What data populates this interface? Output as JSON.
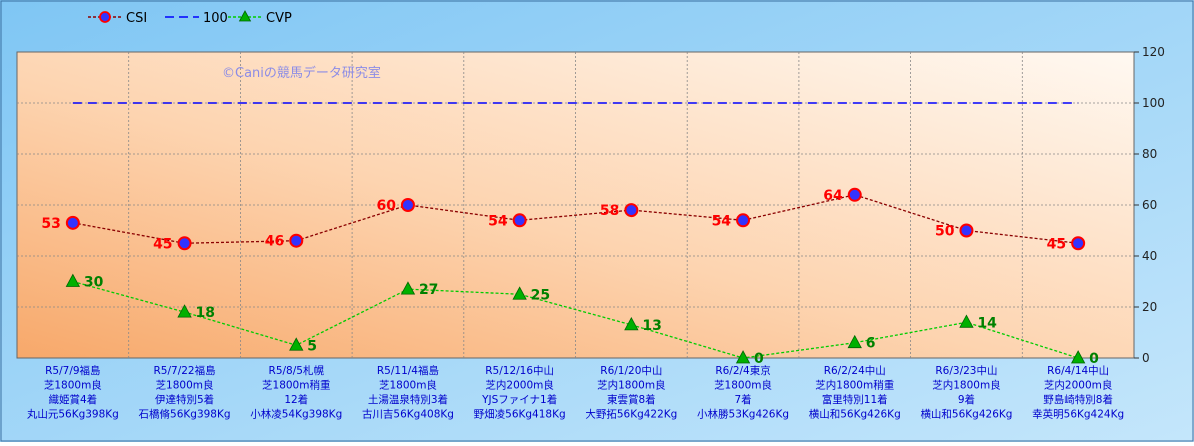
{
  "chart_data": {
    "type": "line",
    "watermark": "©Caniの競馬データ研究室",
    "categories": [
      [
        "R5/7/9福島",
        "芝1800m良",
        "織姫賞4着",
        "丸山元56Kg398Kg"
      ],
      [
        "R5/7/22福島",
        "芝1800m良",
        "伊達特別5着",
        "石橋脩56Kg398Kg"
      ],
      [
        "R5/8/5札幌",
        "芝1800m稍重",
        "12着",
        "小林凌54Kg398Kg"
      ],
      [
        "R5/11/4福島",
        "芝1800m良",
        "土湯温泉特別3着",
        "古川吉56Kg408Kg"
      ],
      [
        "R5/12/16中山",
        "芝内2000m良",
        "YJSファイナ1着",
        "野畑凌56Kg418Kg"
      ],
      [
        "R6/1/20中山",
        "芝内1800m良",
        "東雲賞8着",
        "大野拓56Kg422Kg"
      ],
      [
        "R6/2/4東京",
        "芝1800m良",
        "7着",
        "小林勝53Kg426Kg"
      ],
      [
        "R6/2/24中山",
        "芝内1800m稍重",
        "富里特別11着",
        "横山和56Kg426Kg"
      ],
      [
        "R6/3/23中山",
        "芝内1800m良",
        "9着",
        "横山和56Kg426Kg"
      ],
      [
        "R6/4/14中山",
        "芝内2000m良",
        "野島崎特別8着",
        "幸英明56Kg424Kg"
      ]
    ],
    "series": [
      {
        "name": "CSI",
        "values": [
          53,
          45,
          46,
          60,
          54,
          58,
          54,
          64,
          50,
          45
        ],
        "color": "#8b0000",
        "marker": "circle",
        "label_color": "#ff0000"
      },
      {
        "name": "100",
        "values": [
          100,
          100,
          100,
          100,
          100,
          100,
          100,
          100,
          100,
          100
        ],
        "color": "#0000ff",
        "marker": "none"
      },
      {
        "name": "CVP",
        "values": [
          30,
          18,
          5,
          27,
          25,
          13,
          0,
          6,
          14,
          0
        ],
        "color": "#00cc00",
        "marker": "triangle",
        "label_color": "#008000"
      }
    ],
    "y_axis": {
      "min": 0,
      "max": 120,
      "step": 20,
      "ticks": [
        "0",
        "20",
        "40",
        "60",
        "80",
        "100",
        "120"
      ],
      "position": "right"
    },
    "grid": true,
    "legend_position": "top-left",
    "colors": {
      "background": "#9cd2f6",
      "plot_light": "#fff8f0",
      "plot_dark": "#f9b27a",
      "category_text": "#0000cc"
    }
  }
}
